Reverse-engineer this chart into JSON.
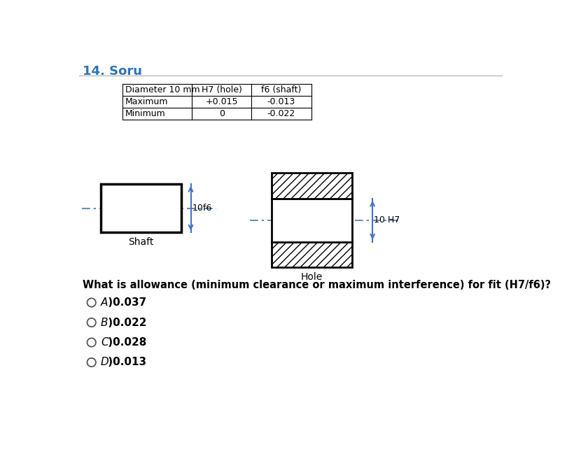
{
  "title": "14. Soru",
  "title_color": "#2E74B5",
  "bg_color": "#ffffff",
  "table_headers": [
    "Diameter 10 mm",
    "H7 (hole)",
    "f6 (shaft)"
  ],
  "table_rows": [
    [
      "Maximum",
      "+0.015",
      "-0.013"
    ],
    [
      "Minimum",
      "0",
      "-0.022"
    ]
  ],
  "shaft_label": "Shaft",
  "hole_label": "Hole",
  "dim_shaft": "10f6",
  "dim_hole": "10 H7",
  "question": "What is allowance (minimum clearance or maximum interference) for fit (H7/f6)?",
  "options": [
    "A )0.037",
    "B )0.022",
    "C )0.028",
    "D )0.013"
  ],
  "arrow_color": "#4472C4",
  "separator_color": "#AAAAAA",
  "line_color": "#000000"
}
